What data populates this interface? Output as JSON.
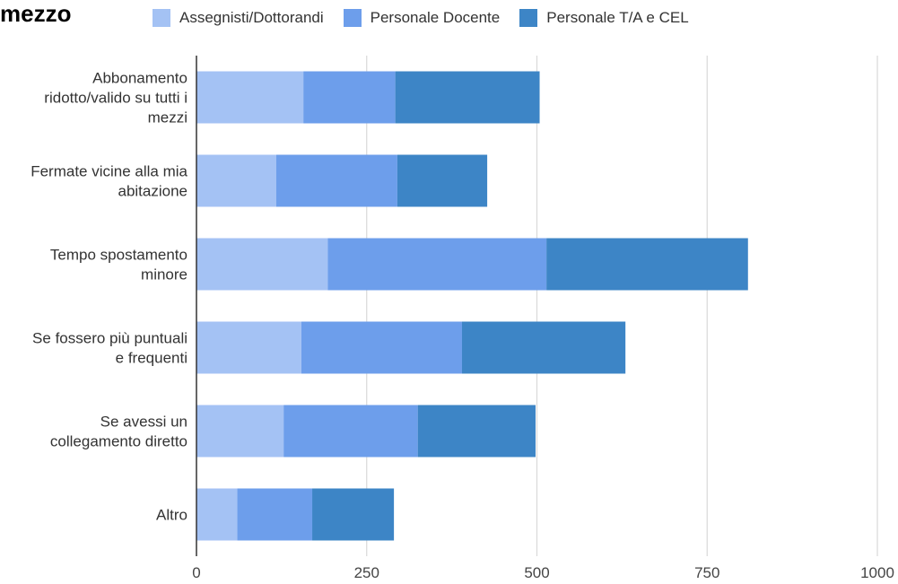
{
  "title_fragment": "mezzo",
  "chart_data": {
    "type": "bar",
    "orientation": "horizontal",
    "stacked": true,
    "categories": [
      [
        "Abbonamento",
        "ridotto/valido su tutti i",
        "mezzi"
      ],
      [
        "Fermate vicine alla mia",
        "abitazione"
      ],
      [
        "Tempo spostamento",
        "minore"
      ],
      [
        "Se fossero più puntuali",
        "e frequenti"
      ],
      [
        "Se avessi un",
        "collegamento diretto"
      ],
      [
        "Altro"
      ]
    ],
    "series": [
      {
        "name": "Assegnisti/Dottorandi",
        "color": "#a4c2f4",
        "values": [
          157,
          117,
          193,
          154,
          128,
          60
        ]
      },
      {
        "name": "Personale Docente",
        "color": "#6d9eeb",
        "values": [
          135,
          178,
          321,
          236,
          197,
          110
        ]
      },
      {
        "name": "Personale T/A e CEL",
        "color": "#3d85c6",
        "values": [
          212,
          132,
          296,
          240,
          173,
          120
        ]
      }
    ],
    "xlim": [
      0,
      1000
    ],
    "xticks": [
      0,
      250,
      500,
      750,
      1000
    ],
    "grid": true,
    "legend_position": "top"
  }
}
